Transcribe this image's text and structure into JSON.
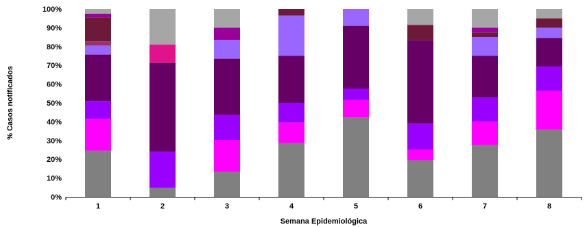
{
  "chart_data": {
    "type": "bar",
    "stacked": true,
    "percent": true,
    "xlabel": "Semana Epidemiológica",
    "ylabel": "% Casos notificados",
    "ylim": [
      0,
      100
    ],
    "yticks": [
      "0%",
      "10%",
      "20%",
      "30%",
      "40%",
      "50%",
      "60%",
      "70%",
      "80%",
      "90%",
      "100%"
    ],
    "categories": [
      "1",
      "2",
      "3",
      "4",
      "5",
      "6",
      "7",
      "8"
    ],
    "grid": false,
    "legend": "none",
    "series": [
      {
        "color": "#808080",
        "values": [
          24.5,
          4.8,
          13.3,
          28.5,
          42.2,
          19.5,
          27.5,
          35.8
        ]
      },
      {
        "color": "#ff00ff",
        "values": [
          17.0,
          0.0,
          17.0,
          11.0,
          9.3,
          5.7,
          12.5,
          20.5
        ]
      },
      {
        "color": "#9900ff",
        "values": [
          9.5,
          19.2,
          13.2,
          10.5,
          6.0,
          13.8,
          12.8,
          13.0
        ]
      },
      {
        "color": "#660066",
        "values": [
          24.7,
          47.3,
          30.0,
          25.0,
          33.5,
          44.3,
          22.2,
          15.2
        ]
      },
      {
        "color": "#9966ff",
        "values": [
          4.8,
          0.0,
          10.0,
          21.5,
          9.0,
          0.0,
          10.0,
          5.5
        ]
      },
      {
        "color": "#993366",
        "values": [
          2.3,
          0.0,
          0.0,
          0.0,
          0.0,
          0.0,
          0.0,
          0.0
        ]
      },
      {
        "color": "#6d1a3a",
        "values": [
          12.7,
          0.0,
          0.0,
          3.5,
          0.0,
          8.2,
          2.5,
          5.0
        ]
      },
      {
        "color": "#990099",
        "values": [
          2.0,
          0.0,
          6.5,
          0.0,
          0.0,
          0.0,
          2.5,
          0.0
        ]
      },
      {
        "color": "#e0138c",
        "values": [
          0.0,
          9.7,
          0.0,
          0.0,
          0.0,
          0.0,
          0.0,
          0.0
        ]
      },
      {
        "color": "#a6a6a6",
        "values": [
          2.5,
          19.0,
          10.0,
          0.0,
          0.0,
          8.5,
          10.0,
          5.0
        ]
      }
    ]
  }
}
